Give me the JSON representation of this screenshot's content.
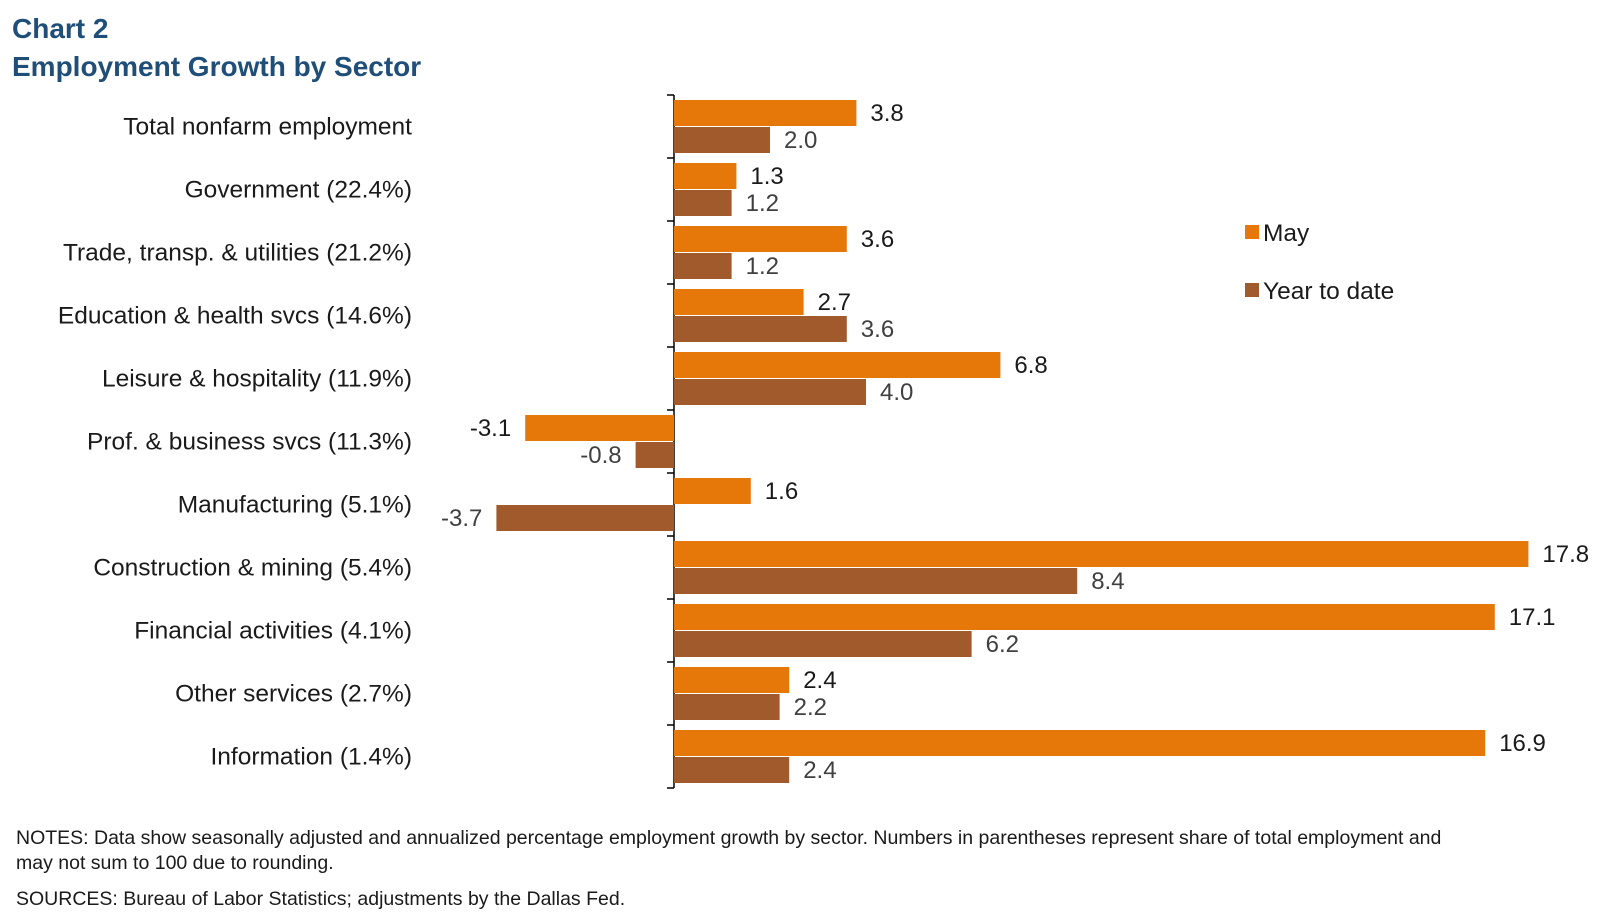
{
  "chart_data": {
    "type": "bar",
    "orientation": "horizontal",
    "title": "Chart 2",
    "subtitle": "Employment Growth by Sector",
    "categories": [
      "Total nonfarm employment",
      "Government (22.4%)",
      "Trade, transp. & utilities (21.2%)",
      "Education & health svcs (14.6%)",
      "Leisure & hospitality (11.9%)",
      "Prof. & business svcs (11.3%)",
      "Manufacturing (5.1%)",
      "Construction & mining (5.4%)",
      "Financial activities (4.1%)",
      "Other services (2.7%)",
      "Information (1.4%)"
    ],
    "series": [
      {
        "name": "May",
        "color": "#e6780a",
        "values": [
          3.8,
          1.3,
          3.6,
          2.7,
          6.8,
          -3.1,
          1.6,
          17.8,
          17.1,
          2.4,
          16.9
        ],
        "labels": [
          "3.8",
          "1.3",
          "3.6",
          "2.7",
          "6.8",
          "-3.1",
          "1.6",
          "17.8",
          "17.1",
          "2.4",
          "16.9"
        ]
      },
      {
        "name": "Year to date",
        "color": "#a05a2c",
        "values": [
          2.0,
          1.2,
          1.2,
          3.6,
          4.0,
          -0.8,
          -3.7,
          8.4,
          6.2,
          2.2,
          2.4
        ],
        "labels": [
          "2.0",
          "1.2",
          "1.2",
          "3.6",
          "4.0",
          "-0.8",
          "-3.7",
          "8.4",
          "6.2",
          "2.2",
          "2.4"
        ]
      }
    ],
    "xlim": [
      -3.7,
      17.8
    ],
    "grid": false,
    "legend": "right"
  },
  "footer": {
    "notes": "NOTES: Data show seasonally adjusted and annualized percentage employment growth by sector. Numbers in parentheses represent share of total employment and may not sum to 100 due to rounding.",
    "sources": "SOURCES: Bureau of Labor Statistics; adjustments by the Dallas Fed."
  }
}
